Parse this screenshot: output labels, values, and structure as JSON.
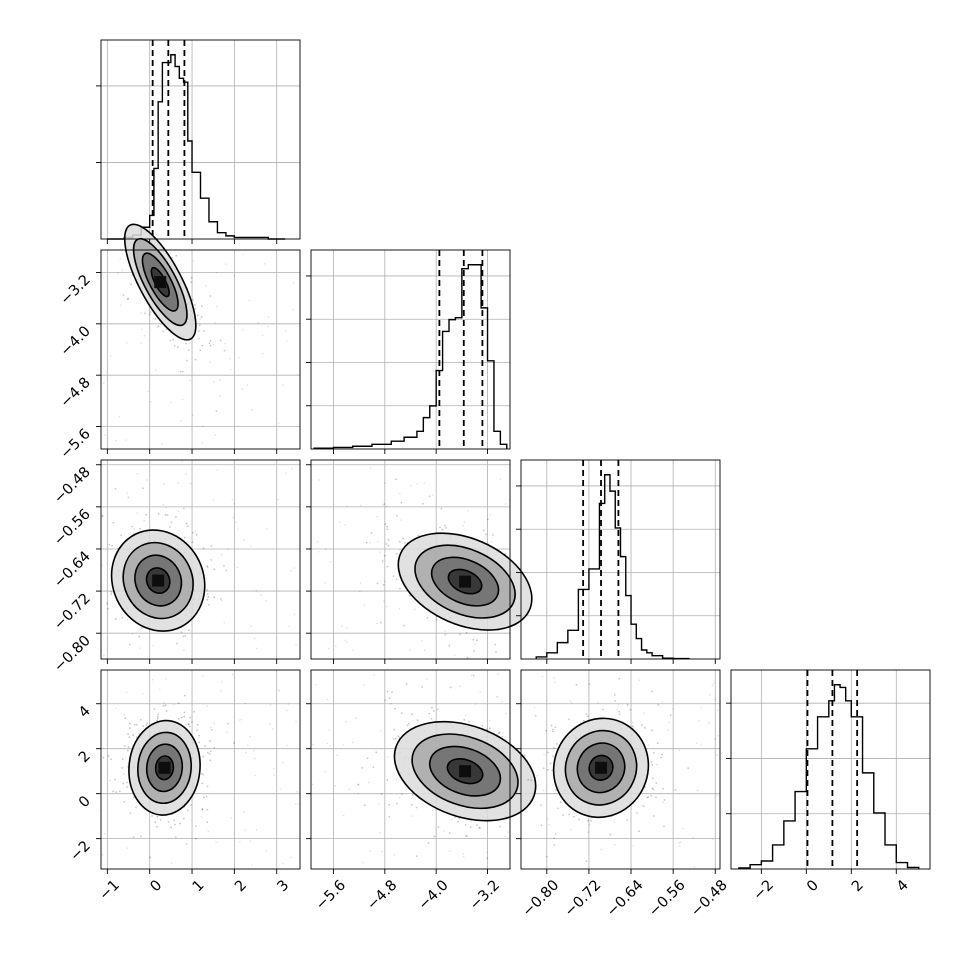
{
  "chart_data": [
    {
      "type": "histogram",
      "panel": "hist-p0",
      "xlim": [
        -1.15,
        3.55
      ],
      "xticks": [
        -1,
        0,
        1,
        2,
        3
      ],
      "yticks": [
        1,
        2
      ],
      "grid": true,
      "bin_edges": [
        -1.0,
        -0.8,
        -0.6,
        -0.4,
        -0.2,
        0.0,
        0.1,
        0.2,
        0.3,
        0.4,
        0.5,
        0.6,
        0.7,
        0.8,
        0.9,
        1.0,
        1.2,
        1.4,
        1.6,
        1.8,
        2.0,
        2.4,
        2.8,
        3.2
      ],
      "counts": [
        0.0,
        0.0,
        0.02,
        0.05,
        0.15,
        0.3,
        0.9,
        1.75,
        2.25,
        2.25,
        2.35,
        2.2,
        2.05,
        2.0,
        1.25,
        0.85,
        0.52,
        0.22,
        0.08,
        0.04,
        0.02,
        0.02,
        0.0
      ],
      "quantiles": [
        0.07,
        0.44,
        0.82
      ]
    },
    {
      "type": "histogram",
      "panel": "hist-p1",
      "xlim": [
        -5.95,
        -2.85
      ],
      "xticks": [
        -5.6,
        -4.8,
        -4.0,
        -3.2
      ],
      "yticks": [
        1,
        2,
        3,
        4
      ],
      "grid": true,
      "bin_edges": [
        -5.9,
        -5.6,
        -5.3,
        -5.0,
        -4.7,
        -4.5,
        -4.3,
        -4.2,
        -4.1,
        -4.0,
        -3.9,
        -3.8,
        -3.7,
        -3.6,
        -3.5,
        -3.4,
        -3.3,
        -3.2,
        -3.1,
        -3.0,
        -2.9
      ],
      "counts": [
        0.02,
        0.04,
        0.07,
        0.12,
        0.2,
        0.3,
        0.45,
        0.8,
        1.1,
        2.0,
        3.0,
        3.3,
        3.35,
        4.6,
        4.7,
        4.7,
        3.6,
        2.25,
        0.45,
        0.12
      ],
      "quantiles": [
        -3.95,
        -3.57,
        -3.28
      ]
    },
    {
      "type": "histogram",
      "panel": "hist-p2",
      "xlim": [
        -0.849,
        -0.471
      ],
      "xticks": [
        -0.8,
        -0.72,
        -0.64,
        -0.56,
        -0.48
      ],
      "yticks": [
        1,
        2,
        3,
        4
      ],
      "grid": true,
      "bin_edges": [
        -0.82,
        -0.8,
        -0.78,
        -0.76,
        -0.74,
        -0.72,
        -0.7,
        -0.69,
        -0.68,
        -0.67,
        -0.66,
        -0.65,
        -0.64,
        -0.63,
        -0.62,
        -0.61,
        -0.6,
        -0.58,
        -0.56,
        -0.53
      ],
      "counts": [
        0.05,
        0.15,
        0.4,
        0.7,
        1.7,
        2.2,
        3.8,
        4.5,
        4.1,
        3.2,
        2.5,
        1.55,
        0.85,
        0.5,
        0.22,
        0.15,
        0.08,
        0.02,
        0.01
      ],
      "quantiles": [
        -0.731,
        -0.697,
        -0.664
      ]
    },
    {
      "type": "histogram",
      "panel": "hist-p3",
      "xlim": [
        -3.35,
        5.5
      ],
      "xticks": [
        -2,
        0,
        2,
        4
      ],
      "yticks": [
        1,
        2,
        3
      ],
      "grid": true,
      "bin_edges": [
        -3.0,
        -2.5,
        -2.0,
        -1.5,
        -1.0,
        -0.5,
        0.0,
        0.5,
        1.0,
        1.25,
        1.5,
        1.75,
        2.0,
        2.5,
        3.0,
        3.5,
        4.0,
        4.5,
        5.0
      ],
      "counts": [
        0.02,
        0.08,
        0.15,
        0.45,
        0.9,
        1.45,
        2.25,
        2.85,
        3.15,
        3.45,
        3.4,
        3.15,
        2.85,
        1.8,
        1.05,
        0.45,
        0.12,
        0.03
      ],
      "quantiles": [
        0.05,
        1.16,
        2.26
      ]
    },
    {
      "type": "contour",
      "panel": "pair-p0-p1",
      "x_param": 0,
      "y_param": 1,
      "xlim": [
        -1.15,
        3.55
      ],
      "ylim": [
        -5.95,
        -2.85
      ],
      "grid": true,
      "center": [
        0.25,
        -3.35
      ],
      "sd": [
        0.42,
        0.45
      ],
      "corr": -0.75,
      "contour_levels_sigma": [
        0.5,
        1.0,
        1.5,
        2.0
      ]
    },
    {
      "type": "contour",
      "panel": "pair-p0-p2",
      "x_param": 0,
      "y_param": 2,
      "xlim": [
        -1.15,
        3.55
      ],
      "ylim": [
        -0.849,
        -0.471
      ],
      "grid": true,
      "center": [
        0.2,
        -0.7
      ],
      "sd": [
        0.55,
        0.048
      ],
      "corr": -0.1,
      "contour_levels_sigma": [
        0.5,
        1.0,
        1.5,
        2.0
      ]
    },
    {
      "type": "contour",
      "panel": "pair-p0-p3",
      "x_param": 0,
      "y_param": 3,
      "xlim": [
        -1.15,
        3.55
      ],
      "ylim": [
        -3.35,
        5.5
      ],
      "grid": true,
      "center": [
        0.35,
        1.15
      ],
      "sd": [
        0.42,
        1.05
      ],
      "corr": 0.05,
      "contour_levels_sigma": [
        0.5,
        1.0,
        1.5,
        2.0
      ]
    },
    {
      "type": "contour",
      "panel": "pair-p1-p2",
      "x_param": 1,
      "y_param": 2,
      "xlim": [
        -5.95,
        -2.85
      ],
      "ylim": [
        -0.849,
        -0.471
      ],
      "grid": true,
      "center": [
        -3.55,
        -0.702
      ],
      "sd": [
        0.52,
        0.046
      ],
      "corr": -0.35,
      "contour_levels_sigma": [
        0.5,
        1.0,
        1.5,
        2.0
      ]
    },
    {
      "type": "contour",
      "panel": "pair-p1-p3",
      "x_param": 1,
      "y_param": 3,
      "xlim": [
        -5.95,
        -2.85
      ],
      "ylim": [
        -3.35,
        5.5
      ],
      "grid": true,
      "center": [
        -3.55,
        1.0
      ],
      "sd": [
        0.55,
        1.1
      ],
      "corr": -0.3,
      "contour_levels_sigma": [
        0.5,
        1.0,
        1.5,
        2.0
      ]
    },
    {
      "type": "contour",
      "panel": "pair-p2-p3",
      "x_param": 2,
      "y_param": 3,
      "xlim": [
        -0.849,
        -0.471
      ],
      "ylim": [
        -3.35,
        5.5
      ],
      "grid": true,
      "center": [
        -0.697,
        1.15
      ],
      "sd": [
        0.045,
        1.1
      ],
      "corr": 0.05,
      "contour_levels_sigma": [
        0.5,
        1.0,
        1.5,
        2.0
      ]
    }
  ],
  "axis_tick_labels": {
    "p0": [
      "−1",
      "0",
      "1",
      "2",
      "3"
    ],
    "p1": [
      "−5.6",
      "−4.8",
      "−4.0",
      "−3.2"
    ],
    "p2": [
      "−0.80",
      "−0.72",
      "−0.64",
      "−0.56",
      "−0.48"
    ],
    "p3": [
      "−2",
      "0",
      "2",
      "4"
    ]
  }
}
